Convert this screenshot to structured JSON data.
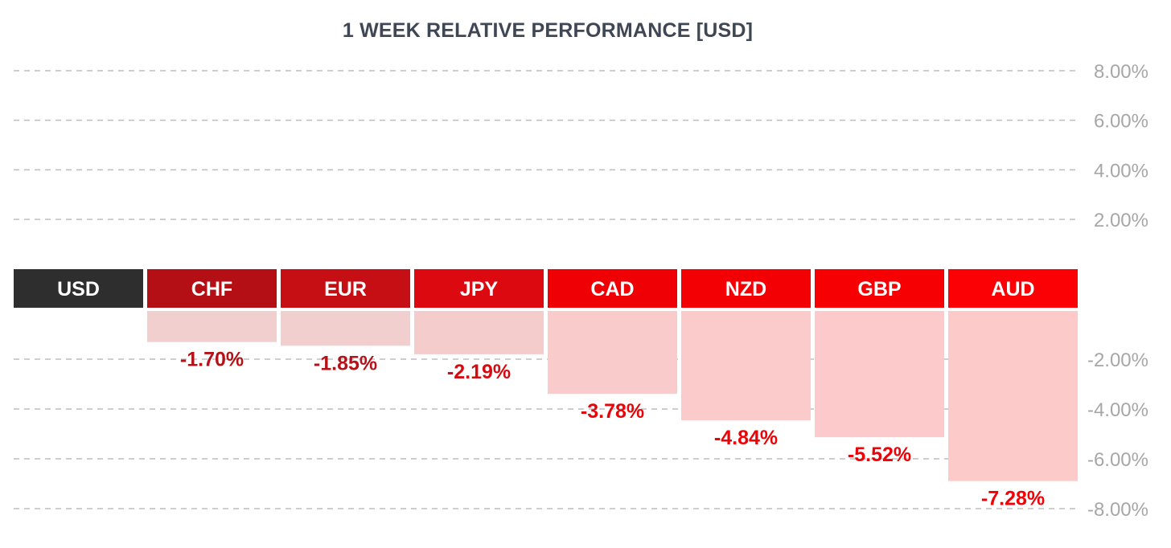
{
  "chart_data": {
    "type": "bar",
    "title": "1 WEEK RELATIVE PERFORMANCE  [USD]",
    "xlabel": "",
    "ylabel": "",
    "categories": [
      "USD",
      "CHF",
      "EUR",
      "JPY",
      "CAD",
      "NZD",
      "GBP",
      "AUD"
    ],
    "values": [
      0,
      -1.7,
      -1.85,
      -2.19,
      -3.78,
      -4.84,
      -5.52,
      -7.28
    ],
    "value_labels": [
      "",
      "-1.70%",
      "-1.85%",
      "-2.19%",
      "-3.78%",
      "-4.84%",
      "-5.52%",
      "-7.28%"
    ],
    "ylim": [
      -8,
      8
    ],
    "y_ticks": [
      8,
      6,
      4,
      2,
      -2,
      -4,
      -6,
      -8
    ],
    "y_tick_labels": [
      "8.00%",
      "6.00%",
      "4.00%",
      "2.00%",
      "-2.00%",
      "-4.00%",
      "-6.00%",
      "-8.00%"
    ],
    "grid": true,
    "grid_style": "dashed",
    "axis_position": "right",
    "header_colors": [
      "#2e2e2e",
      "#b30f14",
      "#c60f15",
      "#dc0a10",
      "#ee0004",
      "#f30004",
      "#f70004",
      "#fb0004"
    ],
    "bar_colors": [
      "#ffffff",
      "#f1cfcf",
      "#f1cfcf",
      "#f4cccc",
      "#f9cbcb",
      "#fbcaca",
      "#fccaca",
      "#fdcaca"
    ],
    "label_colors": [
      "#ffffff",
      "#b51218",
      "#b51218",
      "#d40c12",
      "#e8050a",
      "#ec0306",
      "#ef0206",
      "#f20206"
    ]
  }
}
